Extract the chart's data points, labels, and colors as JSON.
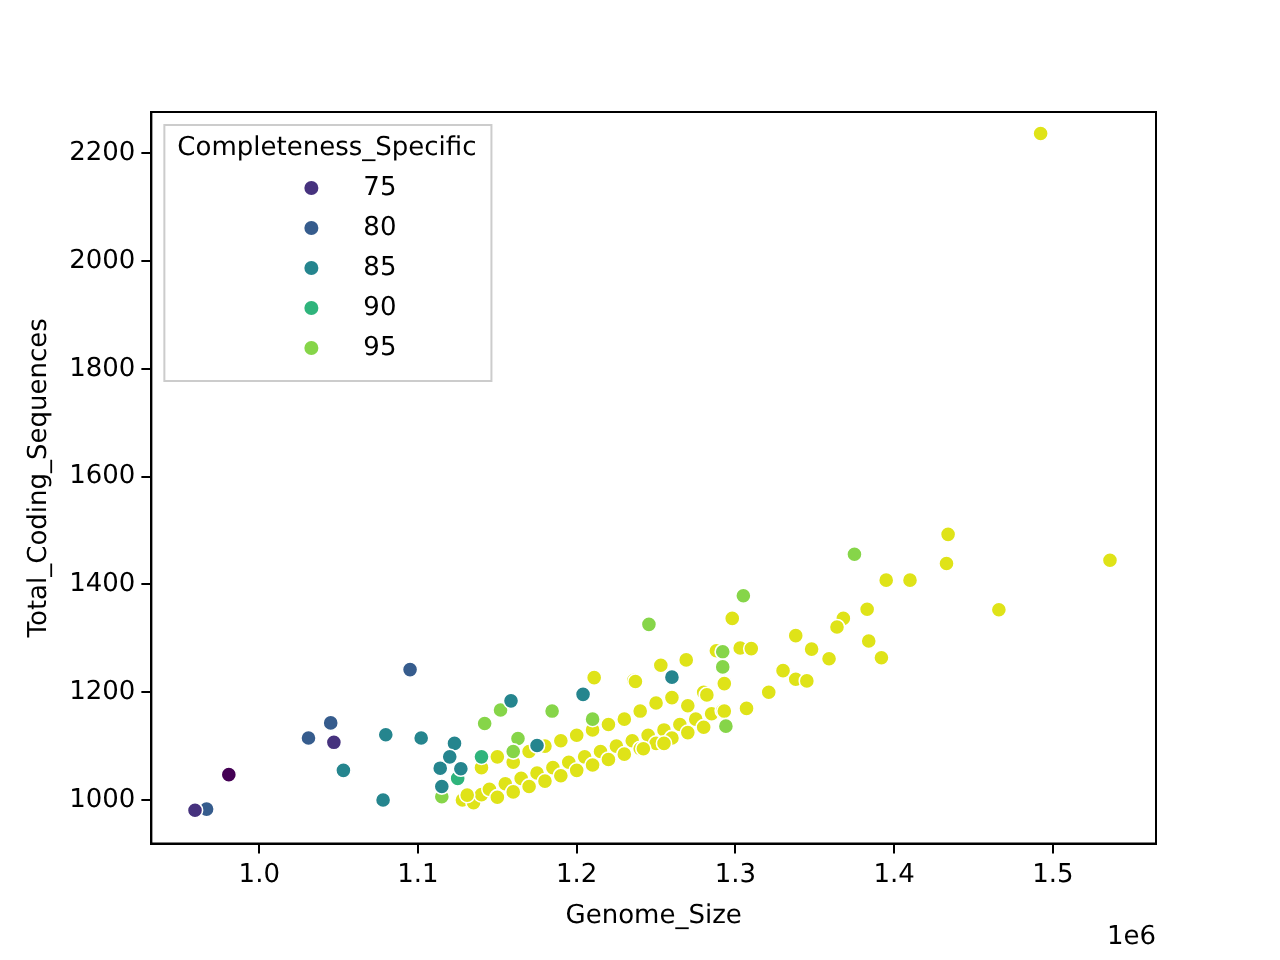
{
  "chart_data": {
    "type": "scatter",
    "xlabel": "Genome_Size",
    "ylabel": "Total_Coding_Sequences",
    "legend_title": "Completeness_Specific",
    "legend": "top left",
    "marker": "circle",
    "annotations": [
      "1e6"
    ],
    "xlim": [
      0.932,
      1.565
    ],
    "ylim": [
      919,
      2277
    ],
    "xticks": [
      {
        "value": 1,
        "label": "1.0"
      },
      1.1,
      1.2,
      1.3,
      1.4,
      1.5
    ],
    "yticks": [
      1000,
      1200,
      1400,
      1600,
      1800,
      2000,
      2200
    ],
    "series": [
      {
        "color": "#440154",
        "x": [
          0.9808
        ],
        "values": [
          1047
        ]
      },
      {
        "name": "75",
        "color": "#46327e",
        "x": [
          0.9595,
          1.047
        ],
        "values": [
          981,
          1107
        ]
      },
      {
        "name": "80",
        "color": "#365c8d",
        "x": [
          0.9668,
          1.031,
          1.045,
          1.095
        ],
        "values": [
          983,
          1115,
          1143,
          1242
        ]
      },
      {
        "name": "85",
        "color": "#25858e",
        "x": [
          1.053,
          1.0797,
          1.078,
          1.102,
          1.123,
          1.114,
          1.127,
          1.115,
          1.1586,
          1.204,
          1.175,
          1.26,
          1.12
        ],
        "values": [
          1055,
          1121,
          1000,
          1115,
          1105,
          1059,
          1058,
          1025,
          1184,
          1196,
          1101,
          1228,
          1080
        ]
      },
      {
        "name": "90",
        "color": "#2fb47c",
        "x": [
          1.14,
          1.125
        ],
        "values": [
          1080,
          1040
        ]
      },
      {
        "name": "95",
        "color": "#86d549",
        "x": [
          1.115,
          1.152,
          1.142,
          1.1845,
          1.163,
          1.2455,
          1.292,
          1.305,
          1.292,
          1.375,
          1.294,
          1.16,
          1.21
        ],
        "values": [
          1006,
          1167,
          1142,
          1165,
          1114,
          1326,
          1275,
          1379,
          1247,
          1456,
          1137,
          1090,
          1150
        ]
      },
      {
        "color": "#dfe318",
        "x": [
          1.128,
          1.135,
          1.14,
          1.145,
          1.15,
          1.155,
          1.16,
          1.165,
          1.17,
          1.175,
          1.18,
          1.185,
          1.19,
          1.195,
          1.2,
          1.205,
          1.21,
          1.215,
          1.22,
          1.225,
          1.23,
          1.235,
          1.24,
          1.245,
          1.25,
          1.255,
          1.26,
          1.265,
          1.27,
          1.275,
          1.28,
          1.285,
          1.14,
          1.15,
          1.16,
          1.17,
          1.18,
          1.19,
          1.2,
          1.21,
          1.22,
          1.23,
          1.24,
          1.25,
          1.26,
          1.27,
          1.28,
          1.307,
          1.292,
          1.269,
          1.236,
          1.131,
          1.242,
          1.255,
          1.434,
          1.433,
          1.395,
          1.41,
          1.536,
          1.466,
          1.383,
          1.368,
          1.364,
          1.384,
          1.392,
          1.359,
          1.348,
          1.338,
          1.33,
          1.338,
          1.345,
          1.321,
          1.298,
          1.303,
          1.31,
          1.288,
          1.253,
          1.293,
          1.237,
          1.282,
          1.293,
          1.211,
          1.4923
        ],
        "values": [
          1000,
          995,
          1010,
          1020,
          1005,
          1030,
          1015,
          1040,
          1025,
          1050,
          1035,
          1060,
          1045,
          1070,
          1055,
          1080,
          1065,
          1090,
          1075,
          1100,
          1085,
          1110,
          1095,
          1120,
          1105,
          1130,
          1115,
          1140,
          1125,
          1150,
          1135,
          1160,
          1060,
          1080,
          1070,
          1090,
          1100,
          1110,
          1120,
          1130,
          1140,
          1150,
          1165,
          1180,
          1190,
          1175,
          1200,
          1170,
          1166,
          1260,
          1222,
          1009,
          1095,
          1105,
          1493,
          1439,
          1408,
          1408,
          1445,
          1353,
          1354,
          1337,
          1321,
          1295,
          1264,
          1262,
          1280,
          1305,
          1240,
          1224,
          1221,
          1200,
          1337,
          1282,
          1281,
          1277,
          1250,
          1216,
          1220,
          1195,
          1165,
          1227,
          2237
        ]
      }
    ]
  }
}
